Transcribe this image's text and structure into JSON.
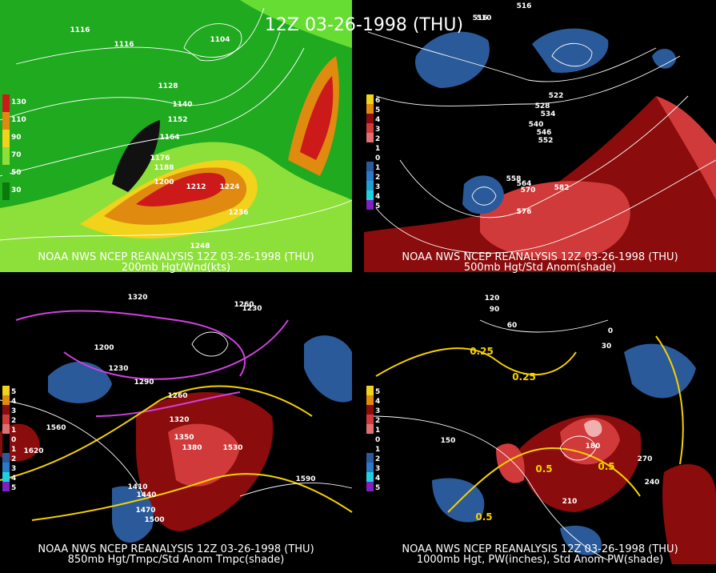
{
  "title": "12Z 03-26-1998 (THU)",
  "panels": [
    {
      "caption": "NOAA NWS NCEP REANALYSIS 12Z 03-26-1998 (THU)",
      "subcaption": "200mb Hgt/Wnd(kts)",
      "legend": [
        "130",
        "110",
        "90",
        "70",
        "50",
        "30"
      ],
      "contours": [
        "1116",
        "1116",
        "1104",
        "1128",
        "1140",
        "1152",
        "1164",
        "1176",
        "1188",
        "1200",
        "1212",
        "1224",
        "1236",
        "1248"
      ]
    },
    {
      "caption": "NOAA NWS NCEP REANALYSIS 12Z 03-26-1998 (THU)",
      "subcaption": "500mb Hgt/Std Anom(shade)",
      "legend": [
        "6",
        "5",
        "4",
        "3",
        "2",
        "1",
        "0",
        "1",
        "2",
        "3",
        "4",
        "5"
      ],
      "contours": [
        "516",
        "510",
        "516",
        "522",
        "528",
        "534",
        "540",
        "546",
        "552",
        "558",
        "564",
        "570",
        "576",
        "582"
      ]
    },
    {
      "caption": "NOAA NWS NCEP REANALYSIS 12Z 03-26-1998 (THU)",
      "subcaption": "850mb Hgt/Tmpc/Std Anom Tmpc(shade)",
      "legend": [
        "5",
        "4",
        "3",
        "2",
        "1",
        "0",
        "1",
        "2",
        "3",
        "4",
        "5"
      ],
      "contours": [
        "1320",
        "1230",
        "1260",
        "1200",
        "1230",
        "1290",
        "1260",
        "1320",
        "1350",
        "1380",
        "1530",
        "1560",
        "1620",
        "1590",
        "1410",
        "1440",
        "1470",
        "1500"
      ]
    },
    {
      "caption": "NOAA NWS NCEP REANALYSIS 12Z 03-26-1998 (THU)",
      "subcaption": "1000mb Hgt, PW(inches), Std Anom PW(shade)",
      "legend": [
        "5",
        "4",
        "3",
        "2",
        "1",
        "0",
        "1",
        "2",
        "3",
        "4",
        "5"
      ],
      "contours": [
        "120",
        "90",
        "60",
        "30",
        "0",
        "0.25",
        "0.25",
        "150",
        "180",
        "210",
        "240",
        "270",
        "0.5",
        "0.5",
        "0.5"
      ]
    }
  ]
}
